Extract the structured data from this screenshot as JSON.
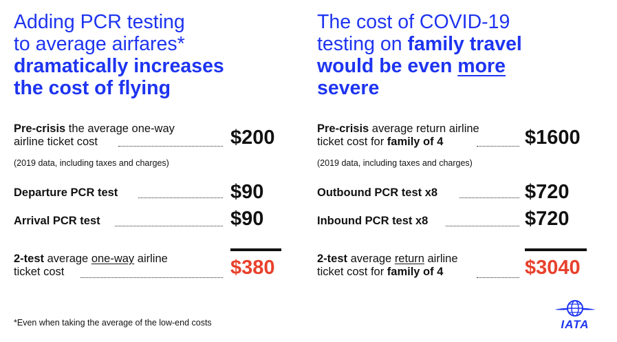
{
  "left": {
    "heading": {
      "line1": "Adding PCR testing",
      "line2": "to average airfares*",
      "line3": "dramatically increases",
      "line4": "the cost of flying"
    },
    "precrisis": {
      "bold": "Pre-crisis",
      "text1": " the average one-way",
      "text2": "airline ticket cost",
      "price": "$200",
      "note": "(2019 data, including taxes and charges)"
    },
    "departure": {
      "label": "Departure PCR test",
      "price": "$90"
    },
    "arrival": {
      "label": "Arrival PCR test",
      "price": "$90"
    },
    "total": {
      "bold": "2-test",
      "text1": " average ",
      "underlined": "one-way",
      "text2": " airline",
      "text3": "ticket cost",
      "price": "$380"
    }
  },
  "right": {
    "heading": {
      "line1": "The cost of COVID-19",
      "line2_light": "testing on ",
      "line2_bold": "family travel",
      "line3_bold": "would be even ",
      "line3_underlined": "more",
      "line4": "severe"
    },
    "precrisis": {
      "bold": "Pre-crisis",
      "text1": " average return airline",
      "text2": "ticket cost for ",
      "text2_bold": "family of 4",
      "price": "$1600",
      "note": "(2019 data, including taxes and charges)"
    },
    "outbound": {
      "label": "Outbound PCR test x8",
      "price": "$720"
    },
    "inbound": {
      "label": "Inbound PCR test x8",
      "price": "$720"
    },
    "total": {
      "bold": "2-test",
      "text1": " average ",
      "underlined": "return",
      "text2": " airline",
      "text3": "ticket cost for ",
      "text3_bold": "family of 4",
      "price": "$3040"
    }
  },
  "footnote": "*Even when taking the average of the low-end costs",
  "logo": {
    "text": "IATA",
    "icon": "globe-plane-icon"
  },
  "colors": {
    "heading_blue": "#1e34f0",
    "total_red": "#e8412c",
    "text": "#111111"
  }
}
